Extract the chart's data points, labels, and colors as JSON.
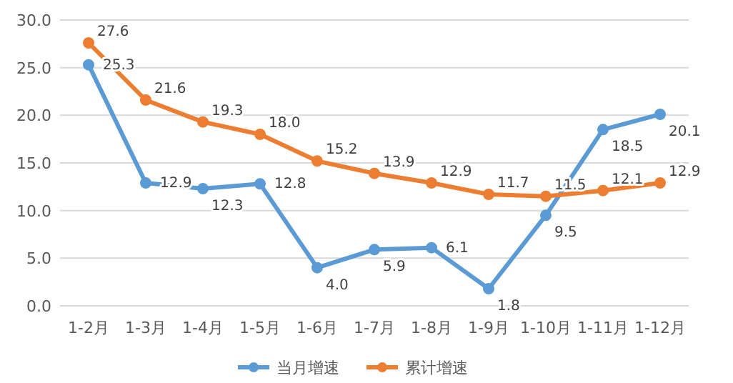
{
  "chart_data": {
    "type": "line",
    "categories": [
      "1-2月",
      "1-3月",
      "1-4月",
      "1-5月",
      "1-6月",
      "1-7月",
      "1-8月",
      "1-9月",
      "1-10月",
      "1-11月",
      "1-12月"
    ],
    "series": [
      {
        "name": "当月增速",
        "color": "#5b9bd5",
        "values": [
          25.3,
          12.9,
          12.3,
          12.8,
          4.0,
          5.9,
          6.1,
          1.8,
          9.5,
          18.5,
          20.1
        ],
        "value_labels": [
          "25.3",
          "12.9",
          "12.3",
          "12.8",
          "4.0",
          "5.9",
          "6.1",
          "1.8",
          "9.5",
          "18.5",
          "20.1"
        ]
      },
      {
        "name": "累计增速",
        "color": "#ed7d31",
        "values": [
          27.6,
          21.6,
          19.3,
          18.0,
          15.2,
          13.9,
          12.9,
          11.7,
          11.5,
          12.1,
          12.9
        ],
        "value_labels": [
          "27.6",
          "21.6",
          "19.3",
          "18.0",
          "15.2",
          "13.9",
          "12.9",
          "11.7",
          "11.5",
          "12.1",
          "12.9"
        ]
      }
    ],
    "ylim": [
      0,
      30
    ],
    "yticks": [
      {
        "value": 0,
        "label": "0.0"
      },
      {
        "value": 5,
        "label": "5.0"
      },
      {
        "value": 10,
        "label": "10.0"
      },
      {
        "value": 15,
        "label": "15.0"
      },
      {
        "value": 20,
        "label": "20.0"
      },
      {
        "value": 25,
        "label": "25.0"
      },
      {
        "value": 30,
        "label": "30.0"
      }
    ],
    "grid": "y",
    "legend": "bottom",
    "marker": "circle",
    "line_style": "solid"
  }
}
